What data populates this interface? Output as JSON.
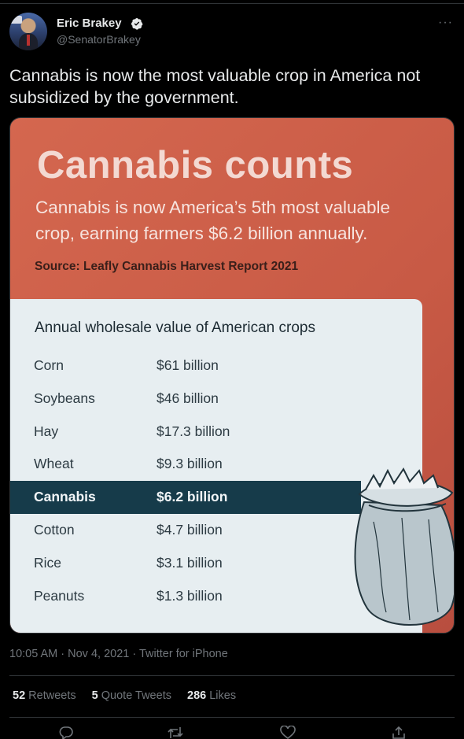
{
  "author": {
    "name": "Eric Brakey",
    "handle": "@SenatorBrakey",
    "verified": true
  },
  "tweet": {
    "text": "Cannabis is now the most valuable crop in America not subsidized by the government."
  },
  "media": {
    "title": "Cannabis counts",
    "subtitle_line1": "Cannabis is now America’s 5th most valuable",
    "subtitle_line2": "crop, earning farmers $6.2 billion annually.",
    "source": "Source: Leafly Cannabis Harvest Report 2021",
    "table_title": "Annual wholesale value of American crops",
    "rows": [
      {
        "crop": "Corn",
        "value": "$61 billion"
      },
      {
        "crop": "Soybeans",
        "value": "$46 billion"
      },
      {
        "crop": "Hay",
        "value": "$17.3 billion"
      },
      {
        "crop": "Wheat",
        "value": "$9.3 billion"
      },
      {
        "crop": "Cannabis",
        "value": "$6.2 billion"
      },
      {
        "crop": "Cotton",
        "value": "$4.7 billion"
      },
      {
        "crop": "Rice",
        "value": "$3.1 billion"
      },
      {
        "crop": "Peanuts",
        "value": "$1.3 billion"
      }
    ],
    "highlighted_crop": "Cannabis"
  },
  "meta": {
    "timestamp": "10:05 AM · Nov 4, 2021 · Twitter for iPhone"
  },
  "stats": {
    "retweets_count": "52",
    "retweets_label": "Retweets",
    "quotes_count": "5",
    "quotes_label": "Quote Tweets",
    "likes_count": "286",
    "likes_label": "Likes"
  },
  "icons": [
    "more-icon",
    "verified-icon",
    "reply-icon",
    "retweet-icon",
    "like-icon",
    "share-icon"
  ],
  "colors": {
    "background": "#000000",
    "text": "#e7e9ea",
    "muted": "#71767b",
    "divider": "#2f3336",
    "media_orange": "#c85a45",
    "table_highlight": "#163b4a"
  }
}
